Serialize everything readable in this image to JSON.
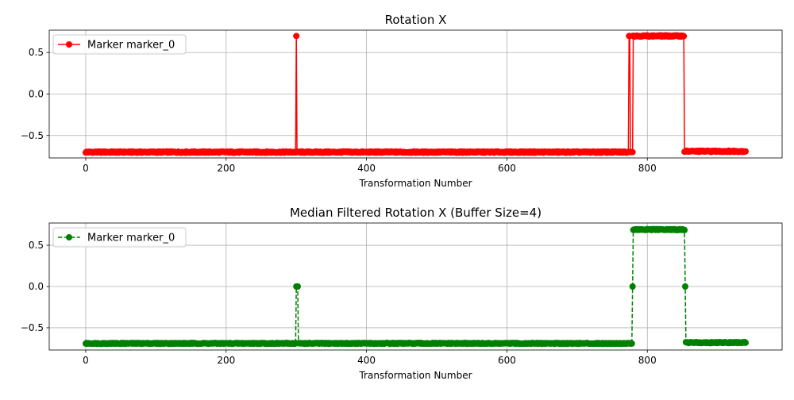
{
  "chart_data": [
    {
      "type": "line",
      "title": "Rotation X",
      "xlabel": "Transformation Number",
      "ylabel": "",
      "xlim": [
        -52,
        992
      ],
      "ylim": [
        -0.77,
        0.77
      ],
      "xticks": [
        0,
        200,
        400,
        600,
        800
      ],
      "yticks": [
        -0.5,
        0.0,
        0.5
      ],
      "xtick_labels": [
        "0",
        "200",
        "400",
        "600",
        "800"
      ],
      "ytick_labels": [
        "−0.5",
        "0.0",
        "0.5"
      ],
      "grid": true,
      "legend": "upper-left",
      "series": [
        {
          "name": "Marker marker_0",
          "color": "#ff0000",
          "linestyle": "solid",
          "marker": "circle",
          "segments": [
            {
              "x_start": 0,
              "x_end": 299,
              "y": -0.7,
              "noise": 0.008
            },
            {
              "x_start": 300,
              "x_end": 300,
              "y": 0.7
            },
            {
              "x_start": 301,
              "x_end": 773,
              "y": -0.7,
              "noise": 0.008
            },
            {
              "x_start": 774,
              "x_end": 775,
              "y": 0.7
            },
            {
              "x_start": 776,
              "x_end": 779,
              "y": -0.7
            },
            {
              "x_start": 780,
              "x_end": 852,
              "y": 0.7,
              "noise": 0.008
            },
            {
              "x_start": 853,
              "x_end": 940,
              "y": -0.69,
              "noise": 0.008
            }
          ]
        }
      ]
    },
    {
      "type": "line",
      "title": "Median Filtered Rotation X (Buffer Size=4)",
      "xlabel": "Transformation Number",
      "ylabel": "",
      "xlim": [
        -52,
        992
      ],
      "ylim": [
        -0.77,
        0.77
      ],
      "xticks": [
        0,
        200,
        400,
        600,
        800
      ],
      "yticks": [
        -0.5,
        0.0,
        0.5
      ],
      "xtick_labels": [
        "0",
        "200",
        "400",
        "600",
        "800"
      ],
      "ytick_labels": [
        "−0.5",
        "0.0",
        "0.5"
      ],
      "grid": true,
      "legend": "upper-left",
      "series": [
        {
          "name": "Marker marker_0",
          "color": "#008000",
          "linestyle": "dashed",
          "marker": "circle",
          "segments": [
            {
              "x_start": 0,
              "x_end": 299,
              "y": -0.69,
              "noise": 0.006
            },
            {
              "x_start": 300,
              "x_end": 302,
              "y": 0.0
            },
            {
              "x_start": 303,
              "x_end": 778,
              "y": -0.69,
              "noise": 0.006
            },
            {
              "x_start": 779,
              "x_end": 779,
              "y": 0.0
            },
            {
              "x_start": 780,
              "x_end": 853,
              "y": 0.69,
              "noise": 0.006
            },
            {
              "x_start": 854,
              "x_end": 854,
              "y": 0.0
            },
            {
              "x_start": 855,
              "x_end": 940,
              "y": -0.68,
              "noise": 0.006
            }
          ]
        }
      ]
    }
  ]
}
